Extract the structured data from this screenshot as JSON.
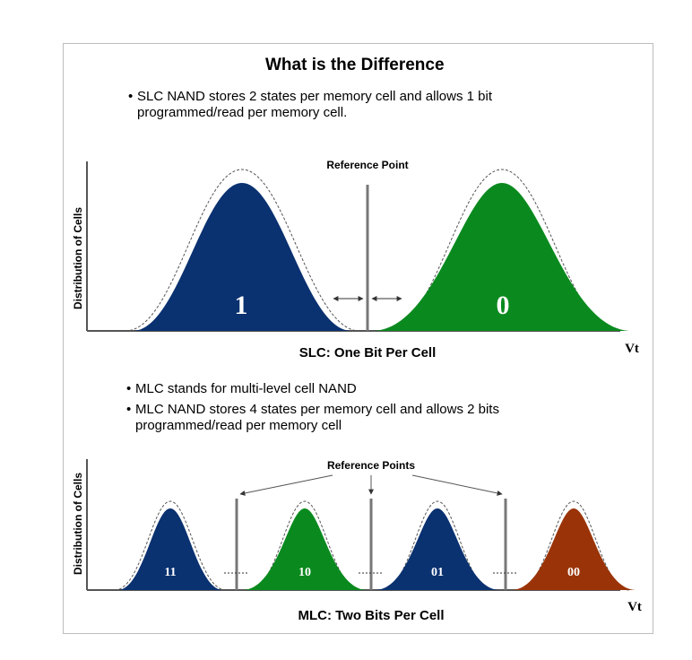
{
  "title": "What is the Difference",
  "bullet_glyph": "•",
  "bullets_slc": [
    [
      "SLC NAND stores 2 states per memory cell and allows 1 bit",
      "programmed/read per memory cell."
    ]
  ],
  "bullets_mlc": [
    [
      "MLC stands for multi-level cell NAND"
    ],
    [
      "MLC NAND stores 4 states per memory cell and allows 2 bits",
      "programmed/read per memory cell"
    ]
  ],
  "slc": {
    "reference_label": "Reference Point",
    "y_axis_label": "Distribution of Cells",
    "x_axis_label": "Vt",
    "caption": "SLC: One Bit Per Cell",
    "states": [
      {
        "label": "1",
        "color": "#0a3170"
      },
      {
        "label": "0",
        "color": "#0a8a1e"
      }
    ]
  },
  "mlc": {
    "reference_label": "Reference Points",
    "y_axis_label": "Distribution of Cells",
    "x_axis_label": "Vt",
    "caption": "MLC: Two Bits Per Cell",
    "states": [
      {
        "label": "11",
        "color": "#0a3170"
      },
      {
        "label": "10",
        "color": "#0a8a1e"
      },
      {
        "label": "01",
        "color": "#0a3170"
      },
      {
        "label": "00",
        "color": "#9a3408"
      }
    ]
  }
}
